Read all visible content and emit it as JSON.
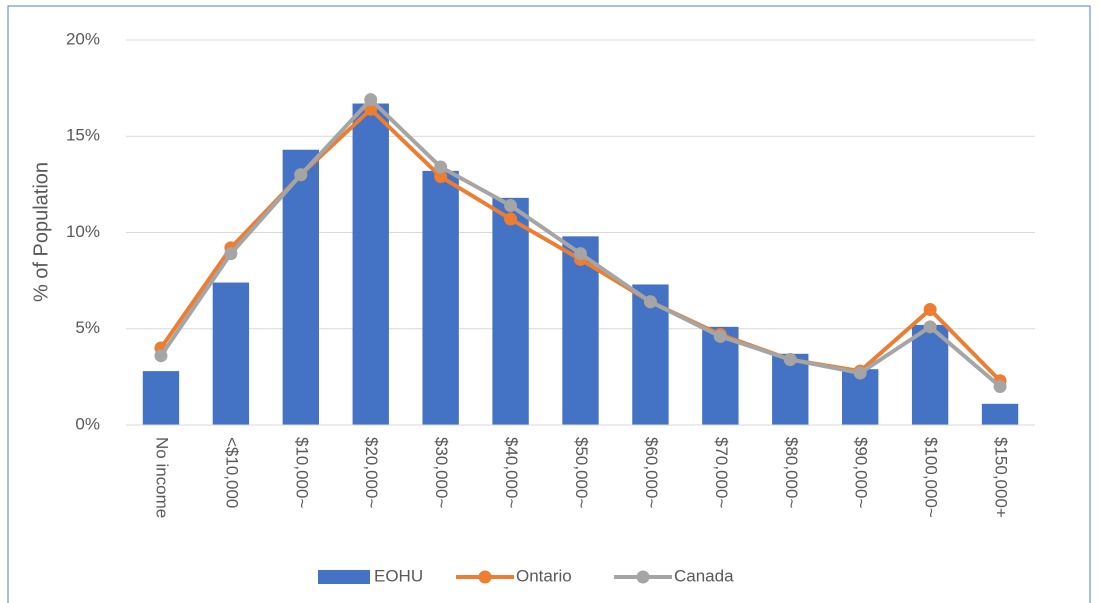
{
  "chart_data": {
    "type": "combo",
    "y_label": "% of Population",
    "categories": [
      "No income",
      "<$10,000",
      "$10,000~",
      "$20,000~",
      "$30,000~",
      "$40,000~",
      "$50,000~",
      "$60,000~",
      "$70,000~",
      "$80,000~",
      "$90,000~",
      "$100,000~",
      "$150,000+"
    ],
    "series": [
      {
        "name": "EOHU",
        "type": "bar",
        "color": "#4472c4",
        "values": [
          2.8,
          7.4,
          14.3,
          16.7,
          13.2,
          11.8,
          9.8,
          7.3,
          5.1,
          3.7,
          2.9,
          5.2,
          1.1
        ]
      },
      {
        "name": "Ontario",
        "type": "line",
        "color": "#ed7d31",
        "values": [
          4.0,
          9.2,
          13.0,
          16.4,
          12.9,
          10.7,
          8.6,
          6.4,
          4.7,
          3.4,
          2.8,
          6.0,
          2.3
        ]
      },
      {
        "name": "Canada",
        "type": "line",
        "color": "#a5a5a5",
        "values": [
          3.6,
          8.9,
          13.0,
          16.9,
          13.4,
          11.4,
          8.9,
          6.4,
          4.6,
          3.4,
          2.7,
          5.1,
          2.0
        ]
      }
    ],
    "ylim": [
      0,
      20
    ],
    "yticks": [
      {
        "value": 0,
        "label": "0%"
      },
      {
        "value": 5,
        "label": "5%"
      },
      {
        "value": 10,
        "label": "10%"
      },
      {
        "value": 15,
        "label": "15%"
      },
      {
        "value": 20,
        "label": "20%"
      }
    ],
    "grid": true,
    "legend": "bottom"
  }
}
